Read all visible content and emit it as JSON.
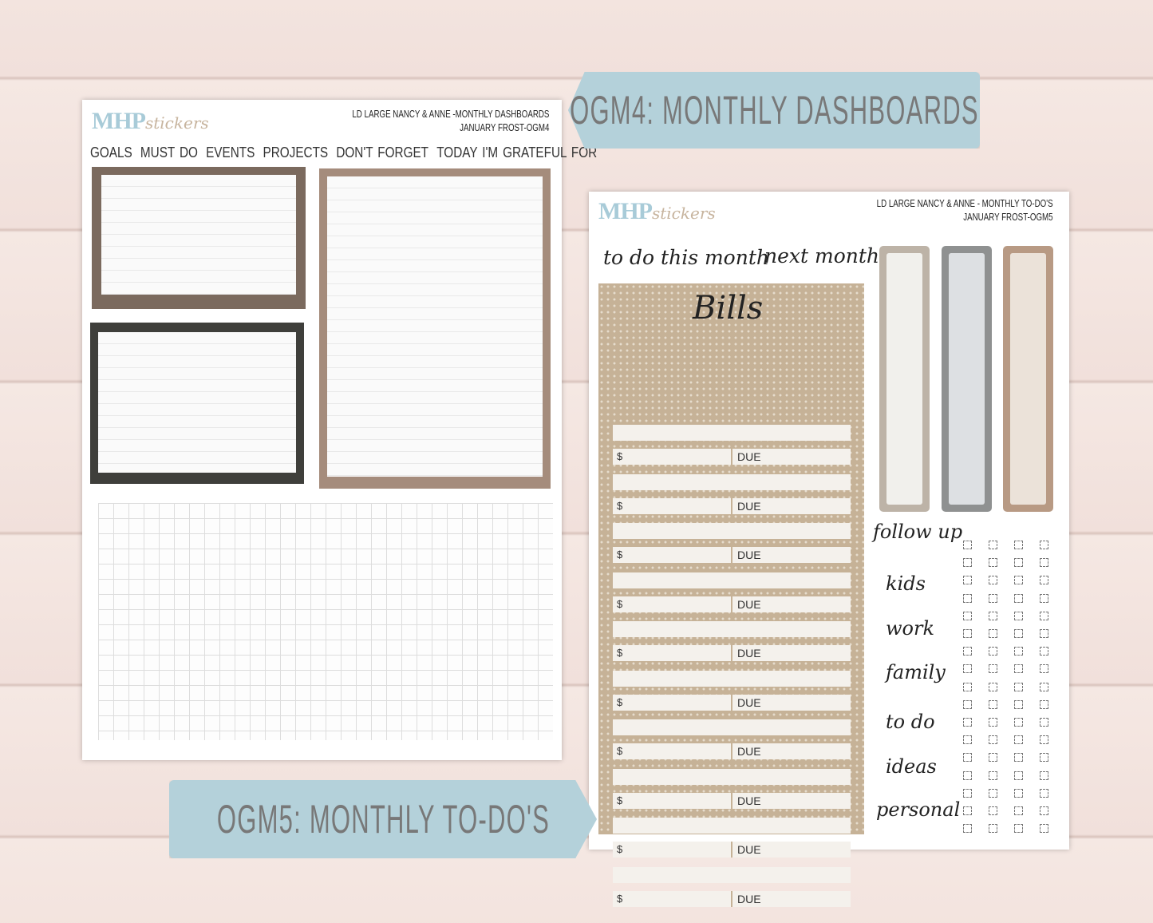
{
  "left_sheet": {
    "logo_main": "MHP",
    "logo_script": "stickers",
    "header_line1": "LD LARGE NANCY & ANNE -MONTHLY DASHBOARDS",
    "header_line2": "JANUARY FROST-OGM4",
    "categories": [
      "GOALS",
      "MUST DO",
      "EVENTS",
      "PROJECTS",
      "DON'T FORGET",
      "TODAY I'M GRATEFUL FOR"
    ]
  },
  "label_top": "OGM4: MONTHLY DASHBOARDS",
  "label_bottom": "OGM5: MONTHLY TO-DO'S",
  "right_sheet": {
    "logo_main": "MHP",
    "logo_script": "stickers",
    "header_line1": "LD LARGE NANCY & ANNE - MONTHLY TO-DO'S",
    "header_line2": "JANUARY FROST-OGM5",
    "to_do_this_month": "to do this month",
    "next_month": "next month",
    "bills_title": "Bills",
    "dollar": "$",
    "due": "DUE",
    "list_labels": [
      "follow up",
      "kids",
      "work",
      "family",
      "to do",
      "ideas",
      "personal"
    ]
  },
  "colors": {
    "label_bg": "#b4d1da",
    "tab1": "#bdb3a7",
    "tab2": "#8f9191",
    "tab3": "#b89a84",
    "bills_bg": "#c6b297",
    "frame_brown": "#7b6a5e",
    "frame_dark": "#3f3f3b",
    "frame_tan": "#a58c7c"
  }
}
